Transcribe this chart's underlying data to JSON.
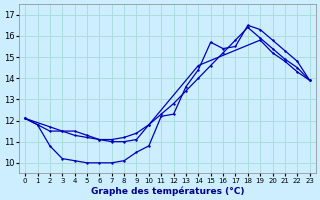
{
  "title": "Graphe des températures (°C)",
  "background_color": "#cceeff",
  "grid_color": "#aadddd",
  "line_color": "#0000bb",
  "xlim": [
    -0.5,
    23.5
  ],
  "ylim": [
    9.5,
    17.5
  ],
  "xticks": [
    0,
    1,
    2,
    3,
    4,
    5,
    6,
    7,
    8,
    9,
    10,
    11,
    12,
    13,
    14,
    15,
    16,
    17,
    18,
    19,
    20,
    21,
    22,
    23
  ],
  "yticks": [
    10,
    11,
    12,
    13,
    14,
    15,
    16,
    17
  ],
  "series1_x": [
    0,
    1,
    2,
    3,
    4,
    5,
    6,
    7,
    8,
    9,
    10,
    11,
    12,
    13,
    14,
    15,
    16,
    17,
    18,
    19,
    20,
    21,
    22,
    23
  ],
  "series1_y": [
    12.1,
    11.8,
    10.8,
    10.2,
    10.1,
    10.0,
    10.0,
    10.0,
    10.1,
    10.5,
    10.8,
    12.2,
    12.3,
    13.6,
    14.4,
    15.7,
    15.4,
    15.5,
    16.5,
    16.3,
    15.8,
    15.3,
    14.8,
    13.9
  ],
  "series2_x": [
    0,
    1,
    2,
    3,
    4,
    5,
    6,
    7,
    8,
    9,
    10,
    11,
    12,
    13,
    14,
    15,
    16,
    17,
    18,
    19,
    20,
    21,
    22,
    23
  ],
  "series2_y": [
    12.1,
    11.8,
    11.5,
    11.5,
    11.3,
    11.2,
    11.1,
    11.1,
    11.2,
    11.4,
    11.8,
    12.3,
    12.8,
    13.4,
    14.0,
    14.6,
    15.2,
    15.8,
    16.4,
    15.9,
    15.4,
    14.9,
    14.5,
    13.9
  ],
  "series3_x": [
    0,
    2,
    3,
    4,
    5,
    6,
    7,
    8,
    9,
    10,
    14,
    19,
    20,
    21,
    22,
    23
  ],
  "series3_y": [
    12.1,
    11.7,
    11.5,
    11.5,
    11.3,
    11.1,
    11.0,
    11.0,
    11.1,
    11.8,
    14.6,
    15.8,
    15.2,
    14.8,
    14.3,
    13.9
  ]
}
